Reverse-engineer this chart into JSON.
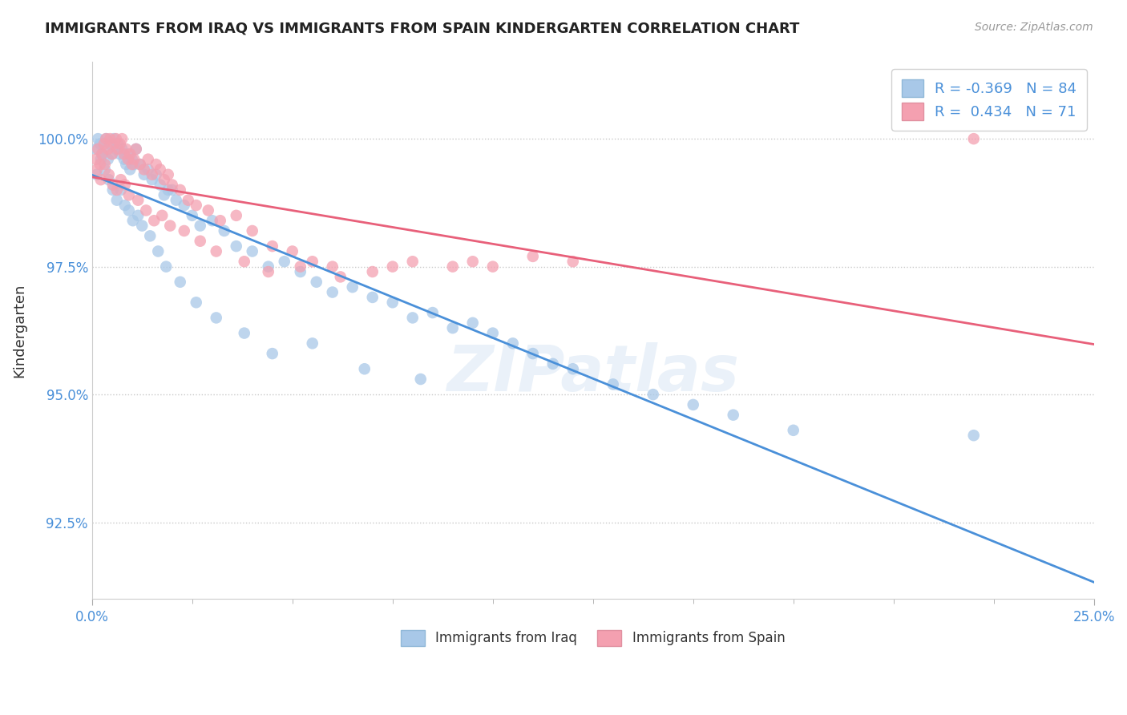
{
  "title": "IMMIGRANTS FROM IRAQ VS IMMIGRANTS FROM SPAIN KINDERGARTEN CORRELATION CHART",
  "source": "Source: ZipAtlas.com",
  "ylabel": "Kindergarten",
  "xlim": [
    0.0,
    25.0
  ],
  "ylim": [
    91.0,
    101.5
  ],
  "yticks": [
    92.5,
    95.0,
    97.5,
    100.0
  ],
  "ytick_labels": [
    "92.5%",
    "95.0%",
    "97.5%",
    "100.0%"
  ],
  "legend_R_iraq": "-0.369",
  "legend_N_iraq": "84",
  "legend_R_spain": "0.434",
  "legend_N_spain": "71",
  "iraq_color": "#a8c8e8",
  "spain_color": "#f4a0b0",
  "iraq_line_color": "#4a90d9",
  "spain_line_color": "#e8607a",
  "background_color": "#ffffff",
  "grid_color": "#c8c8c8",
  "iraq_x": [
    0.1,
    0.15,
    0.2,
    0.25,
    0.3,
    0.35,
    0.4,
    0.45,
    0.5,
    0.55,
    0.6,
    0.65,
    0.7,
    0.75,
    0.8,
    0.85,
    0.9,
    0.95,
    1.0,
    1.05,
    1.1,
    1.2,
    1.3,
    1.4,
    1.5,
    1.6,
    1.7,
    1.8,
    1.9,
    2.0,
    2.1,
    2.3,
    2.5,
    2.7,
    3.0,
    3.3,
    3.6,
    4.0,
    4.4,
    4.8,
    5.2,
    5.6,
    6.0,
    6.5,
    7.0,
    7.5,
    8.0,
    8.5,
    9.0,
    9.5,
    10.0,
    10.5,
    11.0,
    11.5,
    12.0,
    13.0,
    14.0,
    15.0,
    16.0,
    17.5,
    0.12,
    0.22,
    0.32,
    0.42,
    0.52,
    0.62,
    0.72,
    0.82,
    0.92,
    1.02,
    1.15,
    1.25,
    1.45,
    1.65,
    1.85,
    2.2,
    2.6,
    3.1,
    3.8,
    4.5,
    5.5,
    6.8,
    8.2,
    22.0
  ],
  "iraq_y": [
    99.8,
    100.0,
    99.9,
    99.7,
    99.8,
    100.0,
    99.6,
    99.9,
    99.7,
    100.0,
    99.8,
    99.9,
    99.7,
    99.8,
    99.6,
    99.5,
    99.7,
    99.4,
    99.6,
    99.5,
    99.8,
    99.5,
    99.3,
    99.4,
    99.2,
    99.3,
    99.1,
    98.9,
    99.0,
    99.0,
    98.8,
    98.7,
    98.5,
    98.3,
    98.4,
    98.2,
    97.9,
    97.8,
    97.5,
    97.6,
    97.4,
    97.2,
    97.0,
    97.1,
    96.9,
    96.8,
    96.5,
    96.6,
    96.3,
    96.4,
    96.2,
    96.0,
    95.8,
    95.6,
    95.5,
    95.2,
    95.0,
    94.8,
    94.6,
    94.3,
    99.3,
    99.6,
    99.4,
    99.2,
    99.0,
    98.8,
    99.0,
    98.7,
    98.6,
    98.4,
    98.5,
    98.3,
    98.1,
    97.8,
    97.5,
    97.2,
    96.8,
    96.5,
    96.2,
    95.8,
    96.0,
    95.5,
    95.3,
    94.2
  ],
  "spain_x": [
    0.1,
    0.15,
    0.2,
    0.25,
    0.3,
    0.35,
    0.4,
    0.45,
    0.5,
    0.55,
    0.6,
    0.65,
    0.7,
    0.75,
    0.8,
    0.85,
    0.9,
    0.95,
    1.0,
    1.05,
    1.1,
    1.2,
    1.3,
    1.4,
    1.5,
    1.6,
    1.7,
    1.8,
    1.9,
    2.0,
    2.2,
    2.4,
    2.6,
    2.9,
    3.2,
    3.6,
    4.0,
    4.5,
    5.0,
    5.5,
    6.0,
    7.0,
    8.0,
    9.0,
    10.0,
    12.0,
    0.12,
    0.22,
    0.32,
    0.42,
    0.52,
    0.62,
    0.72,
    0.82,
    0.92,
    1.15,
    1.35,
    1.55,
    1.75,
    1.95,
    2.3,
    2.7,
    3.1,
    3.8,
    4.4,
    5.2,
    6.2,
    7.5,
    22.0,
    9.5,
    11.0
  ],
  "spain_y": [
    99.6,
    99.8,
    99.5,
    99.7,
    99.9,
    100.0,
    99.8,
    100.0,
    99.7,
    99.9,
    100.0,
    99.8,
    99.9,
    100.0,
    99.7,
    99.8,
    99.6,
    99.7,
    99.5,
    99.6,
    99.8,
    99.5,
    99.4,
    99.6,
    99.3,
    99.5,
    99.4,
    99.2,
    99.3,
    99.1,
    99.0,
    98.8,
    98.7,
    98.6,
    98.4,
    98.5,
    98.2,
    97.9,
    97.8,
    97.6,
    97.5,
    97.4,
    97.6,
    97.5,
    97.5,
    97.6,
    99.4,
    99.2,
    99.5,
    99.3,
    99.1,
    99.0,
    99.2,
    99.1,
    98.9,
    98.8,
    98.6,
    98.4,
    98.5,
    98.3,
    98.2,
    98.0,
    97.8,
    97.6,
    97.4,
    97.5,
    97.3,
    97.5,
    100.0,
    97.6,
    97.7
  ]
}
